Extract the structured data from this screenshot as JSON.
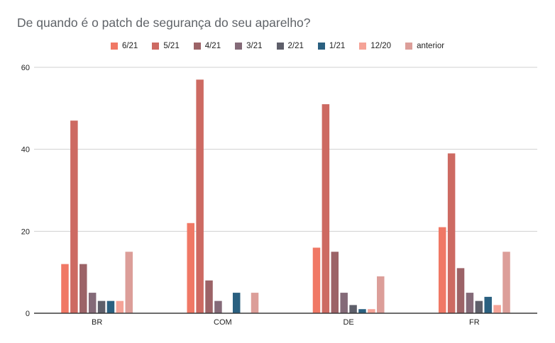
{
  "chart_data": {
    "type": "bar",
    "title": "De quando é o patch de segurança do seu aparelho?",
    "xlabel": "",
    "ylabel": "",
    "categories": [
      "BR",
      "COM",
      "DE",
      "FR"
    ],
    "ylim": [
      0,
      60
    ],
    "yticks": [
      "0",
      "20",
      "40",
      "60"
    ],
    "grid": true,
    "legend_position": "top",
    "series": [
      {
        "name": "6/21",
        "color": "#f07865",
        "values": [
          12,
          22,
          16,
          21
        ]
      },
      {
        "name": "5/21",
        "color": "#cd6a62",
        "values": [
          47,
          57,
          51,
          39
        ]
      },
      {
        "name": "4/21",
        "color": "#9c6367",
        "values": [
          12,
          8,
          15,
          11
        ]
      },
      {
        "name": "3/21",
        "color": "#846a78",
        "values": [
          5,
          3,
          5,
          5
        ]
      },
      {
        "name": "2/21",
        "color": "#5e5f6a",
        "values": [
          3,
          0,
          2,
          3
        ]
      },
      {
        "name": "1/21",
        "color": "#2a6080",
        "values": [
          3,
          5,
          1,
          4
        ]
      },
      {
        "name": "12/20",
        "color": "#f5a397",
        "values": [
          3,
          0,
          1,
          2
        ]
      },
      {
        "name": "anterior",
        "color": "#dc9e99",
        "values": [
          15,
          5,
          9,
          15
        ]
      }
    ]
  }
}
